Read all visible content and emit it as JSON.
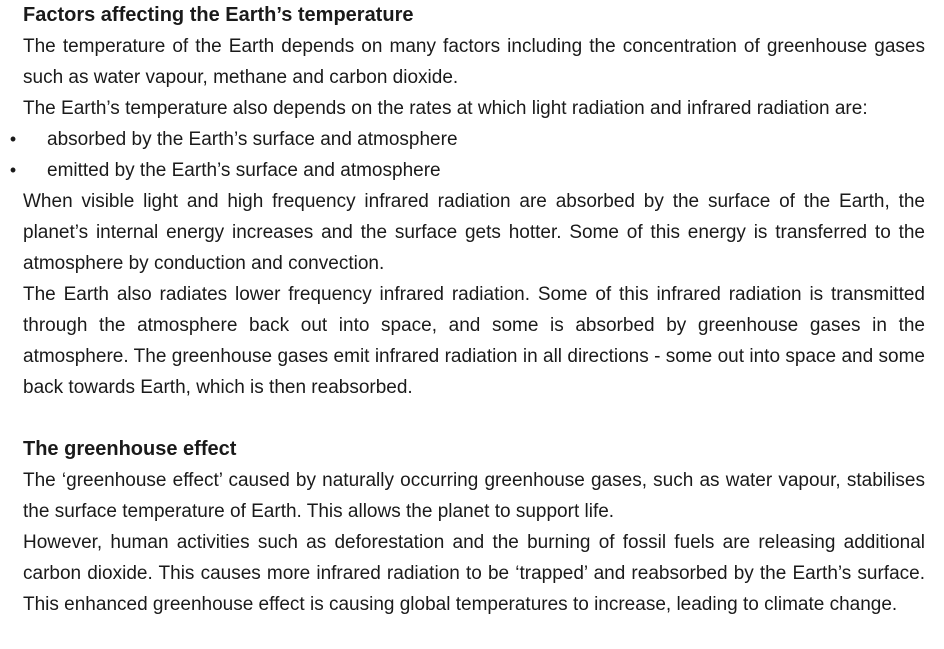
{
  "section1": {
    "heading": "Factors affecting the Earth’s temperature",
    "para1": "The temperature of the Earth depends on many factors including the concentration of greenhouse gases such as water vapour, methane and carbon dioxide.",
    "para2": "The Earth’s temperature also depends on the rates at which light radiation and infrared radiation are:",
    "bullets": [
      "absorbed by the Earth’s surface and atmosphere",
      "emitted by the Earth’s surface and atmosphere"
    ],
    "para3": "When visible light and high frequency infrared radiation are absorbed by the surface of the Earth, the planet’s internal energy increases and the surface gets hotter. Some of this energy is transferred to the atmosphere by conduction and convection.",
    "para4": "The Earth also radiates lower frequency infrared radiation. Some of this infrared radiation is transmitted through the atmosphere back out into space, and some is absorbed by greenhouse gases in the atmosphere. The greenhouse gases emit infrared radiation in all directions - some out into space and some back towards Earth, which is then reabsorbed."
  },
  "section2": {
    "heading": "The greenhouse effect",
    "para1": "The ‘greenhouse effect’ caused by naturally occurring greenhouse gases, such as water vapour, stabilises the surface temperature of Earth. This allows the planet to support life.",
    "para2": "However, human activities such as deforestation and the burning of fossil fuels are releasing additional carbon dioxide. This causes more infrared radiation to be ‘trapped’ and reabsorbed by the Earth’s surface. This enhanced greenhouse effect is causing global temperatures to increase, leading to climate change."
  },
  "bullet_glyph": "•"
}
